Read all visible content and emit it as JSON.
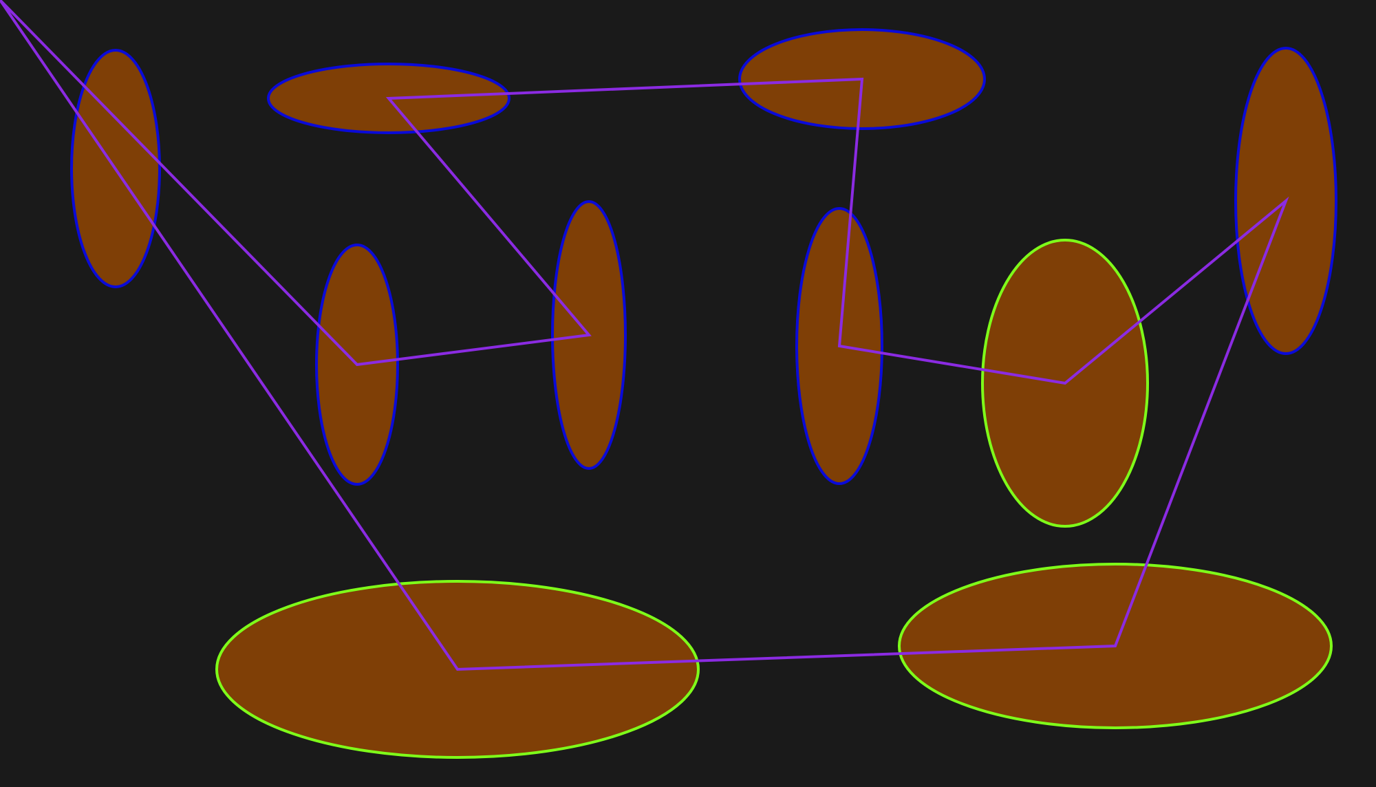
{
  "colors": {
    "background": "#1a1a1a",
    "fill": "#7f3f06",
    "outline_blue": "#0a0ad8",
    "outline_green": "#7fff1a",
    "path": "#8b2be2"
  },
  "shapes": [
    {
      "name": "ellipse-1",
      "outline": "outline_blue"
    },
    {
      "name": "ellipse-2",
      "outline": "outline_blue"
    },
    {
      "name": "ellipse-3",
      "outline": "outline_blue"
    },
    {
      "name": "ellipse-4",
      "outline": "outline_blue"
    },
    {
      "name": "ellipse-5",
      "outline": "outline_blue"
    },
    {
      "name": "ellipse-6",
      "outline": "outline_blue"
    },
    {
      "name": "ellipse-7",
      "outline": "outline_blue"
    },
    {
      "name": "ellipse-8",
      "outline": "outline_green"
    },
    {
      "name": "ellipse-9",
      "outline": "outline_green"
    },
    {
      "name": "ellipse-10",
      "outline": "outline_green"
    }
  ]
}
